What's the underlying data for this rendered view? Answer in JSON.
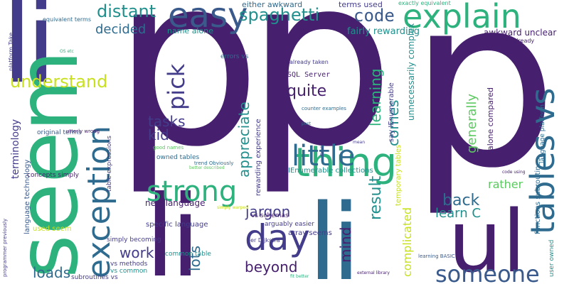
{
  "palette": {
    "purple": "#46206e",
    "indigo": "#433c8a",
    "slate": "#3a5a8c",
    "blue": "#2f6b8e",
    "teal": "#21908d",
    "green": "#2db27d",
    "lime": "#5ec962",
    "yellow": "#c8e020",
    "background": "#ffffff"
  },
  "words": [
    "pp",
    "p",
    "li",
    "seem",
    "li",
    "li",
    "ul",
    "easy",
    "explain",
    "tables vs",
    "thing",
    "exception",
    "day",
    "strong",
    "little",
    "someone",
    "distant",
    "spaghetti",
    "code",
    "decided",
    "understand",
    "pick",
    "quite",
    "tasks",
    "kid",
    "appreciate",
    "learning",
    "comes",
    "result",
    "work",
    "loads",
    "jargon",
    "beyond",
    "lots",
    "mind",
    "generally",
    "rather",
    "back",
    "learn C",
    "complicated",
    "terminology",
    "new language",
    "either awkward",
    "terms used",
    "exactly equivalent",
    "name alone",
    "fairly rewarding",
    "awkward unclear",
    "equivalent terms",
    "things already",
    "SQL Server",
    "already taken",
    "say IEnumerable",
    "unnecessarily complex",
    "alone compared",
    "language platform",
    "functions subroutines",
    "user owned",
    "rewarding experience",
    "IEnumerable collections",
    "temporary tables",
    "language technology",
    "table expressions",
    "original terms",
    "concepts simply",
    "used seem",
    "specific language",
    "array seems",
    "vs schemas",
    "arguably easier",
    "simply becoming",
    "vs methods",
    "vs common",
    "subroutines vs",
    "common table",
    "owned tables",
    "trend Obviously",
    "better described",
    "good names",
    "counter examples",
    "platform Take",
    "utterly wrong",
    "programmer previously",
    "errors vs",
    "per Dijkstra",
    "learning BASIC",
    "external library",
    "fit better",
    "code using",
    "OS etc",
    "Final",
    "post",
    "simply warped",
    "mean"
  ]
}
